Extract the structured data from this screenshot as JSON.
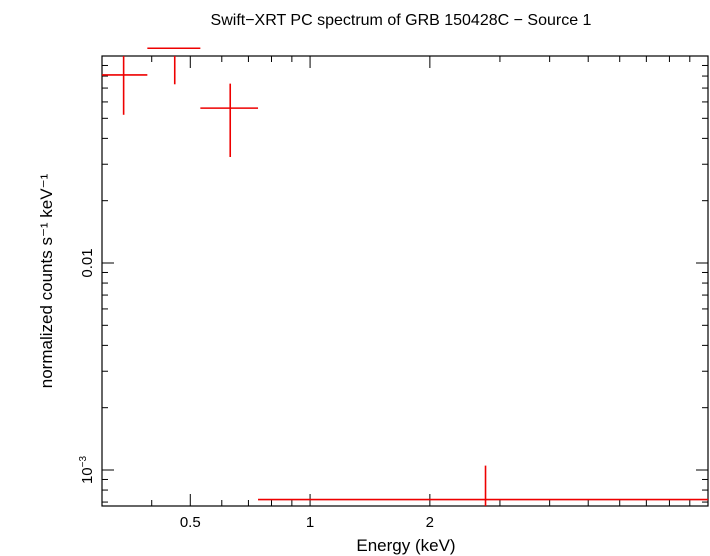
{
  "chart_data": {
    "type": "scatter",
    "title": "Swift−XRT PC spectrum of GRB 150428C − Source 1",
    "xlabel": "Energy (keV)",
    "ylabel": "normalized counts s⁻¹ keV⁻¹",
    "x_scale": "log",
    "y_scale": "log",
    "xlim": [
      0.3,
      10.0
    ],
    "ylim": [
      0.00067,
      0.1
    ],
    "x_ticks": [
      {
        "value": 0.5,
        "label": "0.5"
      },
      {
        "value": 1,
        "label": "1"
      },
      {
        "value": 2,
        "label": "2"
      }
    ],
    "y_ticks": [
      {
        "value": 0.01,
        "label": "0.01",
        "sup": ""
      },
      {
        "value": 0.001,
        "label": "10",
        "sup": "−3"
      }
    ],
    "series": [
      {
        "color": "#ee0000",
        "points": [
          {
            "x": 0.34,
            "xlo": 0.3,
            "xhi": 0.39,
            "y": 0.081,
            "ylo": 0.052,
            "yhi": 0.102
          },
          {
            "x": 0.457,
            "xlo": 0.39,
            "xhi": 0.53,
            "y": 0.109,
            "ylo": 0.073,
            "yhi": 0.138
          },
          {
            "x": 0.63,
            "xlo": 0.53,
            "xhi": 0.74,
            "y": 0.056,
            "ylo": 0.0325,
            "yhi": 0.0735
          },
          {
            "x": 2.76,
            "xlo": 0.74,
            "xhi": 10.0,
            "y": 0.00072,
            "ylo": 0.00067,
            "yhi": 0.00105
          }
        ]
      }
    ],
    "grid": false
  }
}
